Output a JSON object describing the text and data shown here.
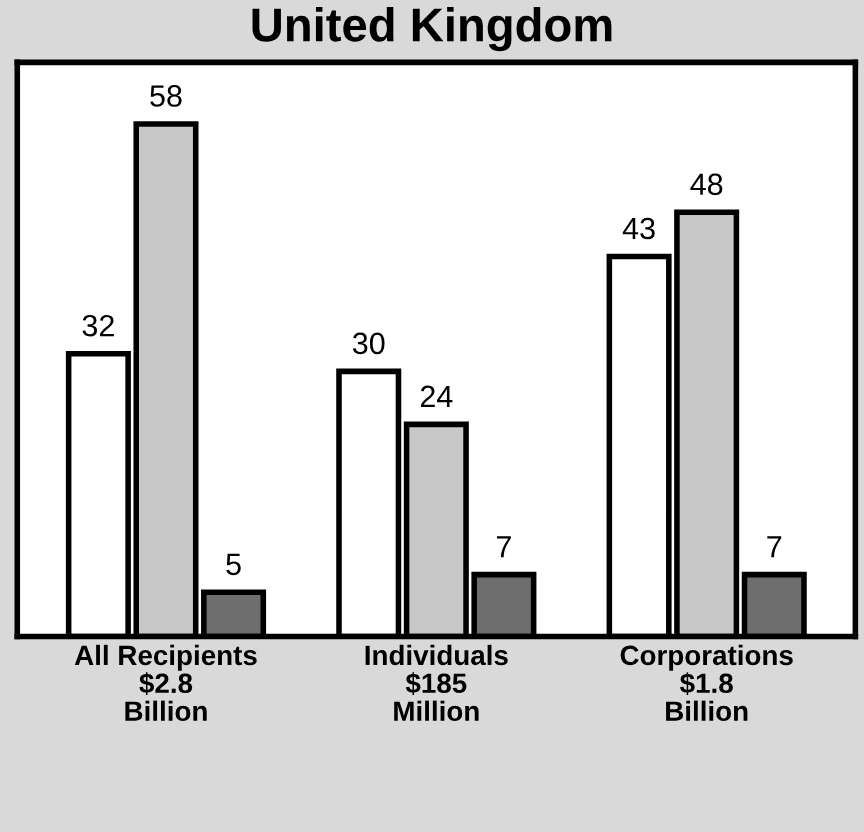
{
  "chart_data": {
    "type": "bar",
    "title": "United Kingdom",
    "categories": [
      "All Recipients\n$2.8\nBillion",
      "Individuals\n$185\nMillion",
      "Corporations\n$1.8\nBillion"
    ],
    "series": [
      {
        "color": "#ffffff",
        "values": [
          32,
          30,
          43
        ]
      },
      {
        "color": "#c8c8c8",
        "values": [
          58,
          24,
          48
        ]
      },
      {
        "color": "#6e6e6e",
        "values": [
          5,
          7,
          7
        ]
      }
    ],
    "data_labels": true,
    "grid": false,
    "legend": false
  }
}
